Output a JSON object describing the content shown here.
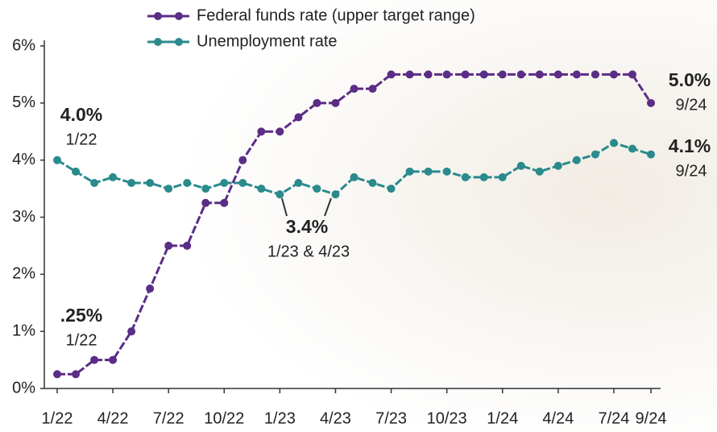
{
  "chart_data": {
    "type": "line",
    "categories": [
      "1/22",
      null,
      null,
      "4/22",
      null,
      null,
      "7/22",
      null,
      null,
      "10/22",
      null,
      null,
      "1/23",
      null,
      null,
      "4/23",
      null,
      null,
      "7/23",
      null,
      null,
      "10/23",
      null,
      null,
      "1/24",
      null,
      null,
      "4/24",
      null,
      null,
      "7/24",
      null,
      "9/24"
    ],
    "series": [
      {
        "name": "Federal funds rate (upper target range)",
        "color": "#5b2d86",
        "values": [
          0.25,
          0.25,
          0.5,
          0.5,
          1.0,
          1.75,
          2.5,
          2.5,
          3.25,
          3.25,
          4.0,
          4.5,
          4.5,
          4.75,
          5.0,
          5.0,
          5.25,
          5.25,
          5.5,
          5.5,
          5.5,
          5.5,
          5.5,
          5.5,
          5.5,
          5.5,
          5.5,
          5.5,
          5.5,
          5.5,
          5.5,
          5.5,
          5.0
        ]
      },
      {
        "name": "Unemployment rate",
        "color": "#2a8a8c",
        "values": [
          4.0,
          3.8,
          3.6,
          3.7,
          3.6,
          3.6,
          3.5,
          3.6,
          3.5,
          3.6,
          3.6,
          3.5,
          3.4,
          3.6,
          3.5,
          3.4,
          3.7,
          3.6,
          3.5,
          3.8,
          3.8,
          3.8,
          3.7,
          3.7,
          3.7,
          3.9,
          3.8,
          3.9,
          4.0,
          4.1,
          4.3,
          4.2,
          4.1
        ]
      }
    ],
    "ylim": [
      0,
      6
    ],
    "yticks": [
      {
        "value": 0,
        "label": "0%"
      },
      {
        "value": 1,
        "label": "1%"
      },
      {
        "value": 2,
        "label": "2%"
      },
      {
        "value": 3,
        "label": "3%"
      },
      {
        "value": 4,
        "label": "4%"
      },
      {
        "value": 5,
        "label": "5%"
      },
      {
        "value": 6,
        "label": "6%"
      }
    ],
    "grid": false,
    "legend": "top",
    "annotations": [
      {
        "text": ".25%",
        "sub": "1/22"
      },
      {
        "text": "4.0%",
        "sub": "1/22"
      },
      {
        "text": "3.4%",
        "sub": "1/23 & 4/23"
      },
      {
        "text": "5.0%",
        "sub": "9/24"
      },
      {
        "text": "4.1%",
        "sub": "9/24"
      }
    ]
  }
}
